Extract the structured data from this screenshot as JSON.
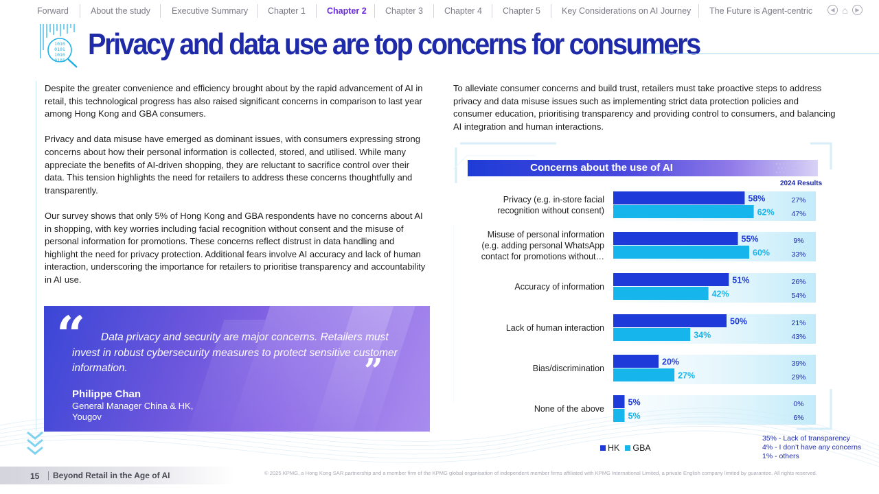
{
  "nav": {
    "items": [
      {
        "label": "Forward",
        "active": false
      },
      {
        "label": "About the study",
        "active": false
      },
      {
        "label": "Executive Summary",
        "active": false
      },
      {
        "label": "Chapter 1",
        "active": false
      },
      {
        "label": "Chapter 2",
        "active": true
      },
      {
        "label": "Chapter 3",
        "active": false
      },
      {
        "label": "Chapter 4",
        "active": false
      },
      {
        "label": "Chapter 5",
        "active": false
      },
      {
        "label": "Key Considerations on AI Journey",
        "active": false
      },
      {
        "label": "The Future is Agent-centric",
        "active": false
      }
    ],
    "icon_icons": [
      "back-icon",
      "home-icon",
      "forward-icon"
    ]
  },
  "title": "Privacy and data use are top concerns for consumers",
  "title_icon_text": [
    "1010",
    "0101",
    "1010",
    "0101"
  ],
  "left": {
    "paragraphs": [
      "Despite the greater convenience and efficiency brought about by the rapid advancement of AI in retail, this technological progress has also raised significant concerns in comparison to last year among Hong Kong and GBA consumers.",
      "Privacy and data misuse have emerged as dominant issues, with consumers expressing strong concerns about how their personal information is collected, stored, and utilised. While many appreciate the benefits of AI-driven shopping, they are reluctant to sacrifice control over their data. This tension highlights the need for retailers to address these concerns thoughtfully and transparently.",
      "Our survey shows that only 5% of Hong Kong and GBA respondents have no concerns about AI in shopping, with key worries including facial recognition without consent and the misuse of personal information for promotions. These concerns reflect distrust in data handling and highlight the need for privacy protection. Additional fears involve AI accuracy and lack of human interaction, underscoring the importance for retailers to prioritise transparency and accountability in AI use."
    ]
  },
  "quote": {
    "open_mark": "“",
    "close_mark": "”",
    "text": "Data privacy and security are major concerns. Retailers must invest in robust cybersecurity measures to protect sensitive customer information.",
    "name": "Philippe Chan",
    "role_line1": "General Manager China & HK,",
    "role_line2": "Yougov"
  },
  "right": {
    "paragraph": "To alleviate consumer concerns and build trust, retailers must take proactive steps to address privacy and data misuse issues such as implementing strict data protection policies and consumer education, prioritising transparency and providing control to consumers, and balancing AI integration and human interactions."
  },
  "chart_data": {
    "type": "bar",
    "orientation": "horizontal",
    "title": "Concerns about the use of AI",
    "categories": [
      "Privacy (e.g. in-store facial recognition without consent)",
      "Misuse of personal information (e.g. adding personal WhatsApp contact for promotions without…",
      "Accuracy of information",
      "Lack of human interaction",
      "Bias/discrimination",
      "None of the above"
    ],
    "category_lines": [
      [
        "Privacy (e.g. in-store facial",
        "recognition without consent)"
      ],
      [
        "Misuse of personal information",
        "(e.g. adding personal WhatsApp",
        "contact for promotions without…"
      ],
      [
        "Accuracy of information"
      ],
      [
        "Lack of human interaction"
      ],
      [
        "Bias/discrimination"
      ],
      [
        "None of the above"
      ]
    ],
    "series": [
      {
        "name": "HK",
        "color": "#1e3ad8",
        "values": [
          58,
          55,
          51,
          50,
          20,
          5
        ]
      },
      {
        "name": "GBA",
        "color": "#16b6ec",
        "values": [
          62,
          60,
          42,
          34,
          27,
          5
        ]
      }
    ],
    "value_suffix": "%",
    "xlim": [
      0,
      100
    ],
    "comparison": {
      "label": "2024 Results",
      "hk": [
        27,
        9,
        26,
        21,
        39,
        0
      ],
      "gba": [
        47,
        33,
        54,
        43,
        29,
        6
      ]
    },
    "legend": [
      "HK",
      "GBA"
    ],
    "legend_position": "bottom",
    "notes": [
      "35% - Lack of transparency",
      "4% - I don’t have any concerns",
      "1% - others"
    ]
  },
  "footer": {
    "page_number": "15",
    "title": "Beyond Retail in the Age of AI",
    "copyright": "© 2025 KPMG, a Hong Kong SAR partnership and a member firm of the KPMG global organisation of independent member firms affiliated with KPMG International Limited, a private English company limited by guarantee. All rights reserved."
  }
}
